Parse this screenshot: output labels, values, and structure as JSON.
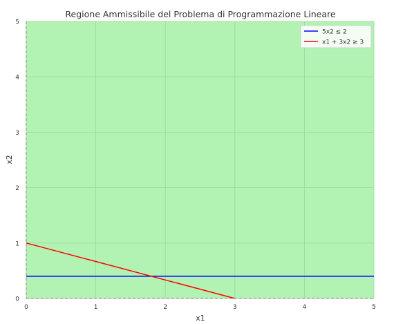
{
  "chart_data": {
    "type": "line",
    "title": "Regione Ammissibile del Problema di Programmazione Lineare",
    "xlabel": "x1",
    "ylabel": "x2",
    "xlim": [
      0,
      5
    ],
    "ylim": [
      0,
      5
    ],
    "xticks": [
      "0",
      "1",
      "2",
      "3",
      "4",
      "5"
    ],
    "yticks": [
      "0",
      "1",
      "2",
      "3",
      "4",
      "5"
    ],
    "grid": true,
    "legend_position": "top-right",
    "feasible_region_color": "#b2f2b2",
    "series": [
      {
        "name": "5x2 ≤ 2",
        "color": "#0000ff",
        "x": [
          0,
          5
        ],
        "y": [
          0.4,
          0.4
        ]
      },
      {
        "name": "x1 + 3x2 ≥ 3",
        "color": "#ff0000",
        "x": [
          0,
          3
        ],
        "y": [
          1,
          0
        ]
      }
    ]
  }
}
